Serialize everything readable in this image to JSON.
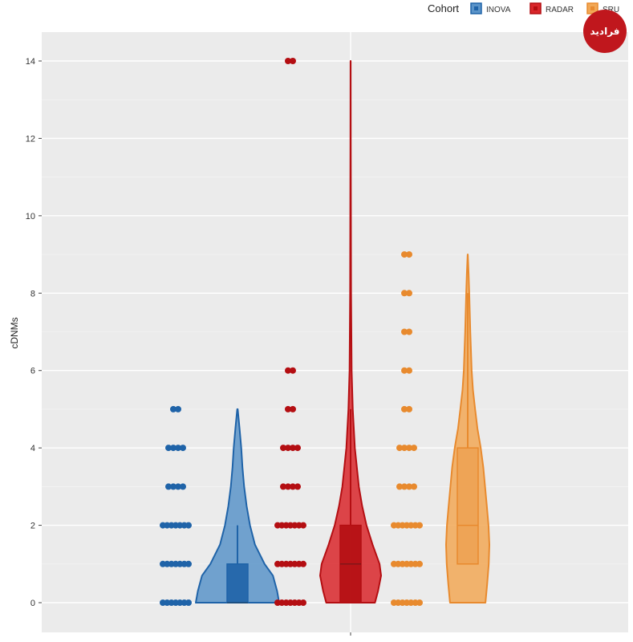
{
  "watermark": {
    "text": "فرادید"
  },
  "chart_data": {
    "type": "violin",
    "title": "",
    "xlabel": "",
    "ylabel": "cDNMs",
    "ylim": [
      -0.5,
      15
    ],
    "yticks": [
      0,
      2,
      4,
      6,
      8,
      10,
      12,
      14
    ],
    "grid": true,
    "legend": {
      "title": "Cohort",
      "position": "top-right"
    },
    "series": [
      {
        "name": "INOVA",
        "color": "#1f63a8",
        "fill": "#5b94c9",
        "max": 5,
        "box": {
          "q1": 0,
          "median": 0,
          "q3": 1,
          "upper_whisker": 2
        },
        "point_levels": [
          0,
          1,
          2,
          3,
          4,
          5
        ],
        "density": [
          [
            0,
            1.0
          ],
          [
            0.3,
            0.95
          ],
          [
            0.7,
            0.85
          ],
          [
            1,
            0.65
          ],
          [
            1.5,
            0.42
          ],
          [
            2,
            0.3
          ],
          [
            2.5,
            0.22
          ],
          [
            3,
            0.16
          ],
          [
            3.5,
            0.12
          ],
          [
            4,
            0.09
          ],
          [
            4.5,
            0.05
          ],
          [
            5,
            0.005
          ]
        ]
      },
      {
        "name": "RADAR",
        "color": "#b40e12",
        "fill": "#d9272b",
        "max": 14,
        "box": {
          "q1": 0,
          "median": 1,
          "q3": 2,
          "upper_whisker": 5
        },
        "point_levels": [
          0,
          1,
          2,
          3,
          4,
          5,
          6,
          14
        ],
        "density": [
          [
            0,
            0.8
          ],
          [
            0.3,
            0.9
          ],
          [
            0.7,
            1.0
          ],
          [
            1,
            0.95
          ],
          [
            1.5,
            0.72
          ],
          [
            2,
            0.52
          ],
          [
            2.5,
            0.38
          ],
          [
            3,
            0.27
          ],
          [
            4,
            0.14
          ],
          [
            5,
            0.07
          ],
          [
            6,
            0.035
          ],
          [
            8,
            0.015
          ],
          [
            10,
            0.01
          ],
          [
            12,
            0.006
          ],
          [
            14,
            0.002
          ]
        ]
      },
      {
        "name": "SRU",
        "color": "#e88a2e",
        "fill": "#f2a856",
        "max": 9,
        "box": {
          "q1": 1,
          "median": 2,
          "q3": 4,
          "upper_whisker": 8
        },
        "point_levels": [
          0,
          1,
          2,
          3,
          4,
          5,
          6,
          7,
          8,
          9
        ],
        "density": [
          [
            0,
            0.82
          ],
          [
            0.5,
            0.9
          ],
          [
            1,
            0.97
          ],
          [
            1.5,
            1.0
          ],
          [
            2,
            0.96
          ],
          [
            2.5,
            0.88
          ],
          [
            3,
            0.8
          ],
          [
            3.5,
            0.72
          ],
          [
            4,
            0.6
          ],
          [
            4.5,
            0.45
          ],
          [
            5,
            0.34
          ],
          [
            5.5,
            0.24
          ],
          [
            6,
            0.18
          ],
          [
            7,
            0.12
          ],
          [
            8,
            0.07
          ],
          [
            8.5,
            0.04
          ],
          [
            9,
            0.005
          ]
        ]
      }
    ]
  }
}
